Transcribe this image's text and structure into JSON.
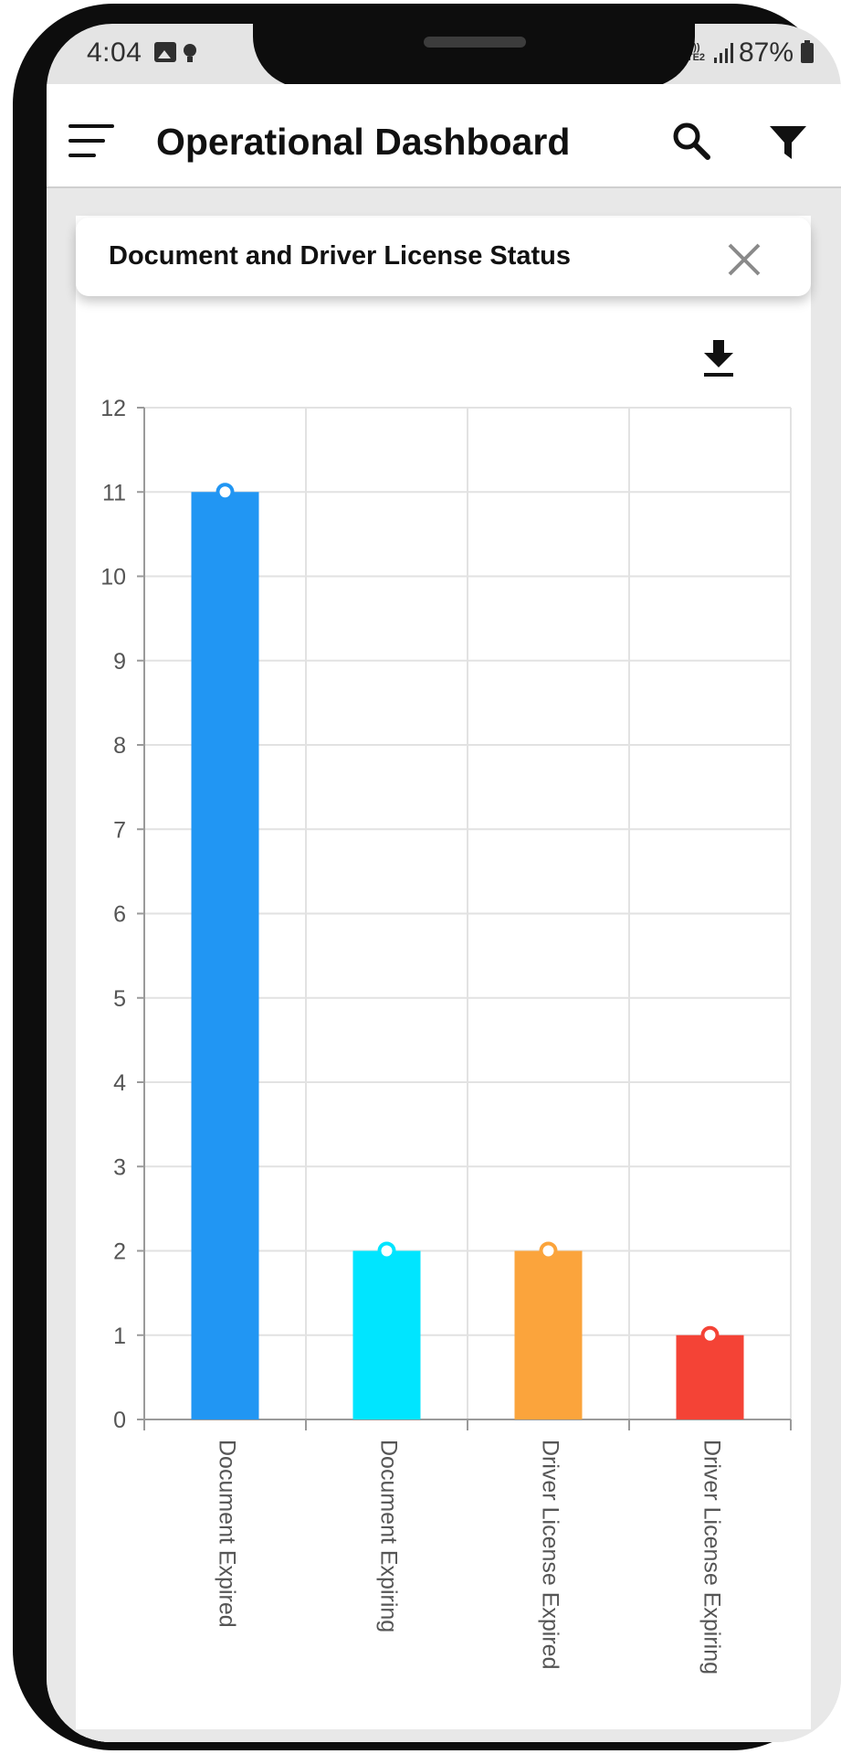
{
  "status_bar": {
    "time": "4:04",
    "network": "Vo)) LTE2",
    "battery": "87%"
  },
  "app_bar": {
    "title": "Operational Dashboard",
    "menu_icon": "hamburger-menu-icon",
    "search_icon": "search-icon",
    "filter_icon": "filter-funnel-icon"
  },
  "card": {
    "title": "Document and Driver License Status",
    "close_icon": "close-icon",
    "download_icon": "download-icon"
  },
  "chart_data": {
    "type": "bar",
    "title": "",
    "xlabel": "",
    "ylabel": "",
    "categories": [
      "Document Expired",
      "Document Expiring",
      "Driver License Expired",
      "Driver License Expiring"
    ],
    "values": [
      11,
      2,
      2,
      1
    ],
    "colors": [
      "#2196F3",
      "#00E5FF",
      "#FBA43C",
      "#F44336"
    ],
    "ylim": [
      0,
      12
    ],
    "yticks": [
      0,
      1,
      2,
      3,
      4,
      5,
      6,
      7,
      8,
      9,
      10,
      11,
      12
    ],
    "grid": true,
    "x_label_rotation": "vertical"
  }
}
